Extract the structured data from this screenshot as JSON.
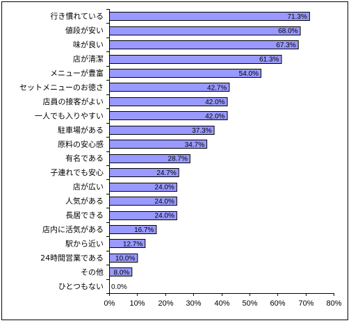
{
  "chart_data": {
    "type": "bar",
    "orientation": "horizontal",
    "categories": [
      "行き慣れている",
      "値段が安い",
      "味が良い",
      "店が清潔",
      "メニューが豊富",
      "セットメニューのお徳さ",
      "店員の接客がよい",
      "一人でも入りやすい",
      "駐車場がある",
      "原料の安心感",
      "有名である",
      "子連れでも安心",
      "店が広い",
      "人気がある",
      "長居できる",
      "店内に活気がある",
      "駅から近い",
      "24時間営業である",
      "その他",
      "ひとつもない"
    ],
    "values": [
      71.3,
      68.0,
      67.3,
      61.3,
      54.0,
      42.7,
      42.0,
      42.0,
      37.3,
      34.7,
      28.7,
      24.7,
      24.0,
      24.0,
      24.0,
      16.7,
      12.7,
      10.0,
      8.0,
      0.0
    ],
    "data_labels": [
      "71.3%",
      "68.0%",
      "67.3%",
      "61.3%",
      "54.0%",
      "42.7%",
      "42.0%",
      "42.0%",
      "37.3%",
      "34.7%",
      "28.7%",
      "24.7%",
      "24.0%",
      "24.0%",
      "24.0%",
      "16.7%",
      "12.7%",
      "10.0%",
      "8.0%",
      "0.0%"
    ],
    "x_ticks": [
      "0%",
      "10%",
      "20%",
      "30%",
      "40%",
      "50%",
      "60%",
      "70%",
      "80%"
    ],
    "xlim": [
      0,
      80
    ],
    "bar_color": "#9999ff",
    "bar_border_color": "#000000",
    "grid": false,
    "legend": "none",
    "title": "",
    "xlabel": "",
    "ylabel": ""
  }
}
